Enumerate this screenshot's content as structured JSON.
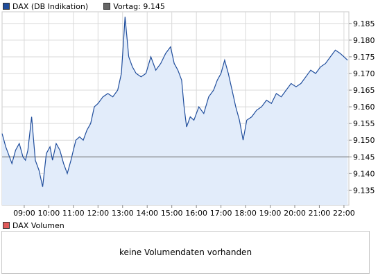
{
  "legend": {
    "main": {
      "label": "DAX (DB Indikation)",
      "color": "#1f4d9c"
    },
    "last": {
      "label": "Vortag: 9.145",
      "color": "#666666"
    },
    "volume": {
      "label": "DAX Volumen",
      "color": "#e05a5a"
    }
  },
  "volume_empty_text": "keine Volumendaten vorhanden",
  "chart_data": {
    "type": "area",
    "x_ticks": [
      "09:00",
      "10:00",
      "11:00",
      "12:00",
      "13:00",
      "14:00",
      "15:00",
      "16:00",
      "17:00",
      "18:00",
      "19:00",
      "20:00",
      "21:00",
      "22:00"
    ],
    "y_ticks": [
      "9.185",
      "9.180",
      "9.175",
      "9.170",
      "9.165",
      "9.160",
      "9.155",
      "9.150",
      "9.145",
      "9.140",
      "9.135"
    ],
    "xlim": [
      8.1,
      22.2
    ],
    "ylim": [
      9.1305,
      9.1885
    ],
    "previous_close": 9.145,
    "line_color": "#1f4d9c",
    "fill_color": "#e2ecfa",
    "series": [
      {
        "x": [
          8.1,
          8.25,
          8.35,
          8.5,
          8.65,
          8.8,
          8.95,
          9.05,
          9.15,
          9.3,
          9.45,
          9.6,
          9.75,
          9.9,
          10.05,
          10.15,
          10.3,
          10.45,
          10.6,
          10.75,
          10.9,
          11.0,
          11.1,
          11.25,
          11.4,
          11.55,
          11.7,
          11.85,
          12.0,
          12.2,
          12.4,
          12.6,
          12.8,
          12.95,
          13.05,
          13.1,
          13.25,
          13.4,
          13.55,
          13.75,
          13.95,
          14.15,
          14.35,
          14.55,
          14.75,
          14.95,
          15.1,
          15.25,
          15.4,
          15.5,
          15.6,
          15.75,
          15.9,
          16.1,
          16.3,
          16.5,
          16.7,
          16.85,
          17.0,
          17.15,
          17.3,
          17.45,
          17.6,
          17.75,
          17.9,
          18.05,
          18.25,
          18.45,
          18.65,
          18.85,
          19.05,
          19.25,
          19.45,
          19.65,
          19.85,
          20.05,
          20.25,
          20.45,
          20.65,
          20.85,
          21.05,
          21.25,
          21.45,
          21.65,
          21.85,
          22.0,
          22.15
        ],
        "y": [
          9.152,
          9.148,
          9.146,
          9.143,
          9.147,
          9.149,
          9.145,
          9.144,
          9.147,
          9.157,
          9.144,
          9.141,
          9.136,
          9.146,
          9.148,
          9.144,
          9.149,
          9.147,
          9.143,
          9.14,
          9.144,
          9.147,
          9.15,
          9.151,
          9.15,
          9.153,
          9.155,
          9.16,
          9.161,
          9.163,
          9.164,
          9.163,
          9.165,
          9.17,
          9.181,
          9.187,
          9.175,
          9.172,
          9.17,
          9.169,
          9.17,
          9.175,
          9.171,
          9.173,
          9.176,
          9.178,
          9.173,
          9.171,
          9.168,
          9.16,
          9.154,
          9.157,
          9.156,
          9.16,
          9.158,
          9.163,
          9.165,
          9.168,
          9.17,
          9.174,
          9.17,
          9.165,
          9.16,
          9.156,
          9.15,
          9.156,
          9.157,
          9.159,
          9.16,
          9.162,
          9.161,
          9.164,
          9.163,
          9.165,
          9.167,
          9.166,
          9.167,
          9.169,
          9.171,
          9.17,
          9.172,
          9.173,
          9.175,
          9.177,
          9.176,
          9.175,
          9.174
        ]
      }
    ]
  }
}
